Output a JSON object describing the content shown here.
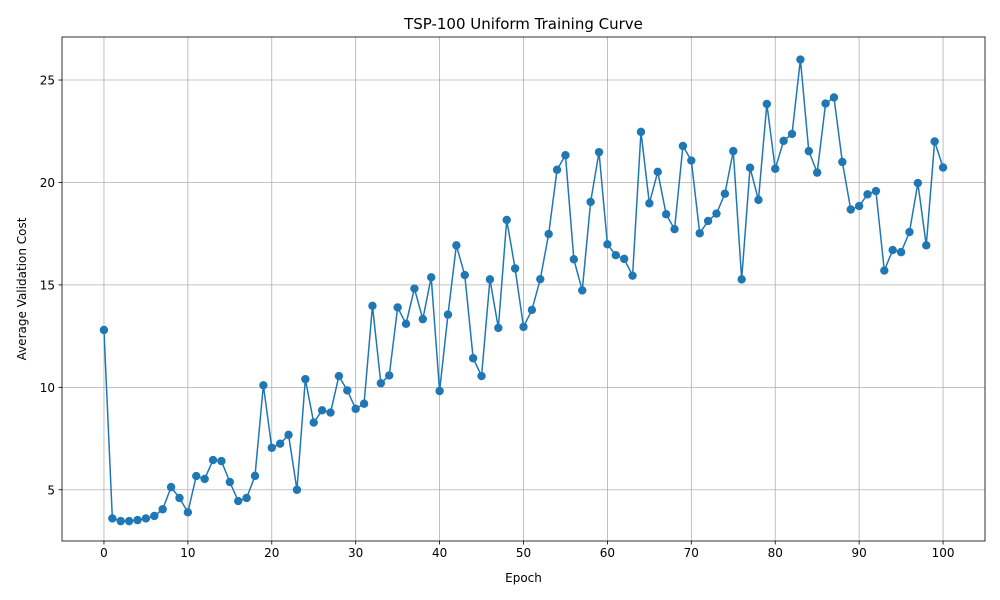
{
  "chart_data": {
    "type": "line",
    "title": "TSP-100 Uniform Training Curve",
    "xlabel": "Epoch",
    "ylabel": "Average Validation Cost",
    "xlim": [
      -5,
      105
    ],
    "ylim": [
      2.5,
      27.1
    ],
    "xticks": [
      0,
      10,
      20,
      30,
      40,
      50,
      60,
      70,
      80,
      90,
      100
    ],
    "yticks": [
      5,
      10,
      15,
      20,
      25
    ],
    "grid": true,
    "color": "#1f77b4",
    "series": [
      {
        "x": [
          0,
          1,
          2,
          3,
          4,
          5,
          6,
          7,
          8,
          9,
          10,
          11,
          12,
          13,
          14,
          15,
          16,
          17,
          18,
          19,
          20,
          21,
          22,
          23,
          24,
          25,
          26,
          27,
          28,
          29,
          30,
          31,
          32,
          33,
          34,
          35,
          36,
          37,
          38,
          39,
          40,
          41,
          42,
          43,
          44,
          45,
          46,
          47,
          48,
          49,
          50,
          51,
          52,
          53,
          54,
          55,
          56,
          57,
          58,
          59,
          60,
          61,
          62,
          63,
          64,
          65,
          66,
          67,
          68,
          69,
          70,
          71,
          72,
          73,
          74,
          75,
          76,
          77,
          78,
          79,
          80,
          81,
          82,
          83,
          84,
          85,
          86,
          87,
          88,
          89,
          90,
          91,
          92,
          93,
          94,
          95,
          96,
          97,
          98,
          99,
          100
        ],
        "values": [
          12.8,
          3.6,
          3.47,
          3.47,
          3.52,
          3.6,
          3.72,
          4.05,
          5.13,
          4.6,
          3.9,
          5.67,
          5.53,
          6.45,
          6.4,
          5.38,
          4.45,
          4.6,
          5.68,
          10.1,
          7.05,
          7.25,
          7.68,
          5.0,
          10.4,
          8.28,
          8.88,
          8.77,
          10.55,
          9.85,
          8.95,
          9.2,
          13.98,
          10.2,
          10.58,
          13.9,
          13.1,
          14.82,
          13.33,
          15.37,
          9.82,
          13.55,
          16.93,
          15.48,
          11.42,
          10.55,
          15.27,
          12.9,
          18.17,
          15.8,
          12.95,
          13.78,
          15.28,
          17.48,
          20.62,
          21.33,
          16.25,
          14.73,
          19.05,
          21.48,
          16.98,
          16.45,
          16.27,
          15.45,
          22.47,
          18.98,
          20.52,
          18.45,
          17.72,
          21.78,
          21.07,
          17.52,
          18.12,
          18.48,
          19.45,
          21.53,
          15.27,
          20.72,
          19.15,
          23.83,
          20.67,
          22.03,
          22.37,
          26.0,
          21.53,
          20.48,
          23.85,
          24.15,
          21.0,
          18.68,
          18.85,
          19.42,
          19.58,
          15.7,
          16.7,
          16.6,
          17.58,
          19.97,
          16.93,
          22.0,
          20.73
        ]
      }
    ]
  }
}
